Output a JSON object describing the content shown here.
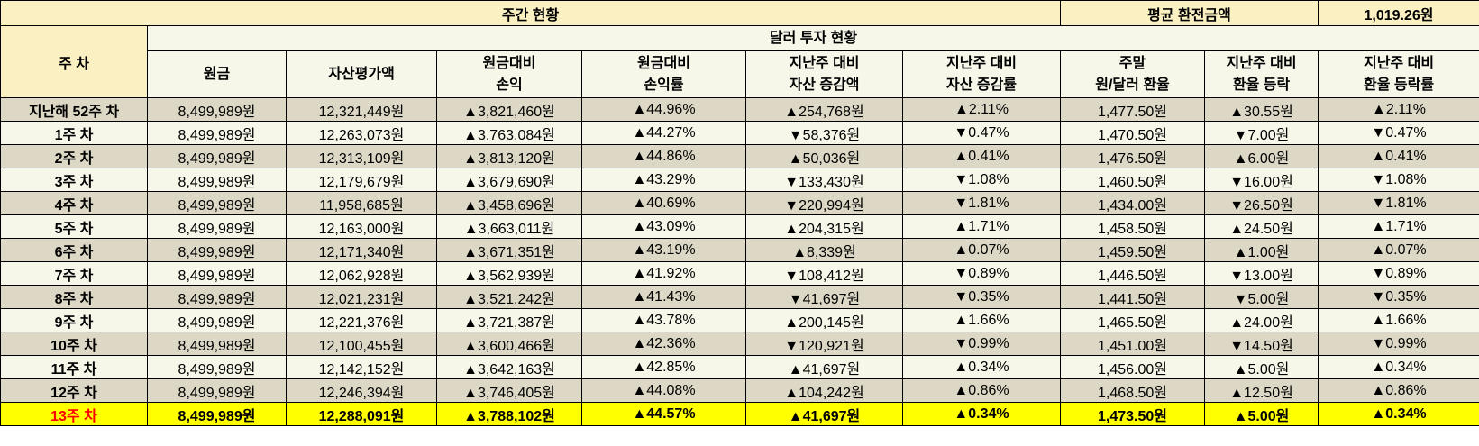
{
  "header": {
    "weekly_status": "주간 현황",
    "avg_rate_label": "평균 환전금액",
    "avg_rate_value": "1,019.26원",
    "week_col": "주 차",
    "dollar_invest": "달러 투자 현황"
  },
  "columns": [
    {
      "line1": "원금",
      "line2": ""
    },
    {
      "line1": "자산평가액",
      "line2": ""
    },
    {
      "line1": "원금대비",
      "line2": "손익"
    },
    {
      "line1": "원금대비",
      "line2": "손익률"
    },
    {
      "line1": "지난주 대비",
      "line2": "자산 증감액"
    },
    {
      "line1": "지난주 대비",
      "line2": "자산 증감률"
    },
    {
      "line1": "주말",
      "line2": "원/달러 환율"
    },
    {
      "line1": "지난주 대비",
      "line2": "환율 등락"
    },
    {
      "line1": "지난주 대비",
      "line2": "환율 등락률"
    }
  ],
  "rows": [
    {
      "week": "지난해 52주 차",
      "cells": [
        {
          "t": "8,499,989원"
        },
        {
          "t": "12,321,449원"
        },
        {
          "t": "▲3,821,460원",
          "c": "up"
        },
        {
          "t": "▲44.96%",
          "c": "up"
        },
        {
          "t": "▲254,768원",
          "c": "up"
        },
        {
          "t": "▲2.11%",
          "c": "up"
        },
        {
          "t": "1,477.50원"
        },
        {
          "t": "▲30.55원",
          "c": "up"
        },
        {
          "t": "▲2.11%",
          "c": "up"
        }
      ]
    },
    {
      "week": "1주 차",
      "cells": [
        {
          "t": "8,499,989원"
        },
        {
          "t": "12,263,073원"
        },
        {
          "t": "▲3,763,084원",
          "c": "up"
        },
        {
          "t": "▲44.27%",
          "c": "up"
        },
        {
          "t": "▼58,376원",
          "c": "down"
        },
        {
          "t": "▼0.47%",
          "c": "down"
        },
        {
          "t": "1,470.50원"
        },
        {
          "t": "▼7.00원",
          "c": "down"
        },
        {
          "t": "▼0.47%",
          "c": "down"
        }
      ]
    },
    {
      "week": "2주 차",
      "cells": [
        {
          "t": "8,499,989원"
        },
        {
          "t": "12,313,109원"
        },
        {
          "t": "▲3,813,120원",
          "c": "up"
        },
        {
          "t": "▲44.86%",
          "c": "up"
        },
        {
          "t": "▲50,036원",
          "c": "up"
        },
        {
          "t": "▲0.41%",
          "c": "up"
        },
        {
          "t": "1,476.50원"
        },
        {
          "t": "▲6.00원",
          "c": "up"
        },
        {
          "t": "▲0.41%",
          "c": "up"
        }
      ]
    },
    {
      "week": "3주 차",
      "cells": [
        {
          "t": "8,499,989원"
        },
        {
          "t": "12,179,679원"
        },
        {
          "t": "▲3,679,690원",
          "c": "up"
        },
        {
          "t": "▲43.29%",
          "c": "up"
        },
        {
          "t": "▼133,430원",
          "c": "down"
        },
        {
          "t": "▼1.08%",
          "c": "down"
        },
        {
          "t": "1,460.50원"
        },
        {
          "t": "▼16.00원",
          "c": "down"
        },
        {
          "t": "▼1.08%",
          "c": "down"
        }
      ]
    },
    {
      "week": "4주 차",
      "cells": [
        {
          "t": "8,499,989원"
        },
        {
          "t": "11,958,685원"
        },
        {
          "t": "▲3,458,696원",
          "c": "up"
        },
        {
          "t": "▲40.69%",
          "c": "up"
        },
        {
          "t": "▼220,994원",
          "c": "down"
        },
        {
          "t": "▼1.81%",
          "c": "down"
        },
        {
          "t": "1,434.00원"
        },
        {
          "t": "▼26.50원",
          "c": "down"
        },
        {
          "t": "▼1.81%",
          "c": "down"
        }
      ]
    },
    {
      "week": "5주 차",
      "cells": [
        {
          "t": "8,499,989원"
        },
        {
          "t": "12,163,000원"
        },
        {
          "t": "▲3,663,011원",
          "c": "up"
        },
        {
          "t": "▲43.09%",
          "c": "up"
        },
        {
          "t": "▲204,315원",
          "c": "up"
        },
        {
          "t": "▲1.71%",
          "c": "up"
        },
        {
          "t": "1,458.50원"
        },
        {
          "t": "▲24.50원",
          "c": "up"
        },
        {
          "t": "▲1.71%",
          "c": "up"
        }
      ]
    },
    {
      "week": "6주 차",
      "cells": [
        {
          "t": "8,499,989원"
        },
        {
          "t": "12,171,340원"
        },
        {
          "t": "▲3,671,351원",
          "c": "up"
        },
        {
          "t": "▲43.19%",
          "c": "up"
        },
        {
          "t": "▲8,339원",
          "c": "up"
        },
        {
          "t": "▲0.07%",
          "c": "up"
        },
        {
          "t": "1,459.50원"
        },
        {
          "t": "▲1.00원",
          "c": "up"
        },
        {
          "t": "▲0.07%",
          "c": "up"
        }
      ]
    },
    {
      "week": "7주 차",
      "cells": [
        {
          "t": "8,499,989원"
        },
        {
          "t": "12,062,928원"
        },
        {
          "t": "▲3,562,939원",
          "c": "up"
        },
        {
          "t": "▲41.92%",
          "c": "up"
        },
        {
          "t": "▼108,412원",
          "c": "down"
        },
        {
          "t": "▼0.89%",
          "c": "down"
        },
        {
          "t": "1,446.50원"
        },
        {
          "t": "▼13.00원",
          "c": "down"
        },
        {
          "t": "▼0.89%",
          "c": "down"
        }
      ]
    },
    {
      "week": "8주 차",
      "cells": [
        {
          "t": "8,499,989원"
        },
        {
          "t": "12,021,231원"
        },
        {
          "t": "▲3,521,242원",
          "c": "up"
        },
        {
          "t": "▲41.43%",
          "c": "up"
        },
        {
          "t": "▼41,697원",
          "c": "down"
        },
        {
          "t": "▼0.35%",
          "c": "down"
        },
        {
          "t": "1,441.50원"
        },
        {
          "t": "▼5.00원",
          "c": "down"
        },
        {
          "t": "▼0.35%",
          "c": "down"
        }
      ]
    },
    {
      "week": "9주 차",
      "cells": [
        {
          "t": "8,499,989원"
        },
        {
          "t": "12,221,376원"
        },
        {
          "t": "▲3,721,387원",
          "c": "up"
        },
        {
          "t": "▲43.78%",
          "c": "up"
        },
        {
          "t": "▲200,145원",
          "c": "up"
        },
        {
          "t": "▲1.66%",
          "c": "up"
        },
        {
          "t": "1,465.50원"
        },
        {
          "t": "▲24.00원",
          "c": "up"
        },
        {
          "t": "▲1.66%",
          "c": "up"
        }
      ]
    },
    {
      "week": "10주 차",
      "cells": [
        {
          "t": "8,499,989원"
        },
        {
          "t": "12,100,455원"
        },
        {
          "t": "▲3,600,466원",
          "c": "up"
        },
        {
          "t": "▲42.36%",
          "c": "up"
        },
        {
          "t": "▼120,921원",
          "c": "down"
        },
        {
          "t": "▼0.99%",
          "c": "down"
        },
        {
          "t": "1,451.00원"
        },
        {
          "t": "▼14.50원",
          "c": "down"
        },
        {
          "t": "▼0.99%",
          "c": "down"
        }
      ]
    },
    {
      "week": "11주 차",
      "cells": [
        {
          "t": "8,499,989원"
        },
        {
          "t": "12,142,152원"
        },
        {
          "t": "▲3,642,163원",
          "c": "up"
        },
        {
          "t": "▲42.85%",
          "c": "up"
        },
        {
          "t": "▲41,697원",
          "c": "up"
        },
        {
          "t": "▲0.34%",
          "c": "up"
        },
        {
          "t": "1,456.00원"
        },
        {
          "t": "▲5.00원",
          "c": "up"
        },
        {
          "t": "▲0.34%",
          "c": "up"
        }
      ]
    },
    {
      "week": "12주 차",
      "cells": [
        {
          "t": "8,499,989원"
        },
        {
          "t": "12,246,394원"
        },
        {
          "t": "▲3,746,405원",
          "c": "up"
        },
        {
          "t": "▲44.08%",
          "c": "up"
        },
        {
          "t": "▲104,242원",
          "c": "up"
        },
        {
          "t": "▲0.86%",
          "c": "up"
        },
        {
          "t": "1,468.50원"
        },
        {
          "t": "▲12.50원",
          "c": "up"
        },
        {
          "t": "▲0.86%",
          "c": "up"
        }
      ]
    },
    {
      "week": "13주 차",
      "cells": [
        {
          "t": "8,499,989원"
        },
        {
          "t": "12,288,091원"
        },
        {
          "t": "▲3,788,102원",
          "c": "up"
        },
        {
          "t": "▲44.57%",
          "c": "up"
        },
        {
          "t": "▲41,697원",
          "c": "up"
        },
        {
          "t": "▲0.34%",
          "c": "up"
        },
        {
          "t": "1,473.50원"
        },
        {
          "t": "▲5.00원",
          "c": "up"
        },
        {
          "t": "▲0.34%",
          "c": "up"
        }
      ]
    }
  ],
  "colors": {
    "up": "#ff0000",
    "down": "#0000ff",
    "highlight": "#ffff00",
    "header": "#fbf0c2"
  }
}
